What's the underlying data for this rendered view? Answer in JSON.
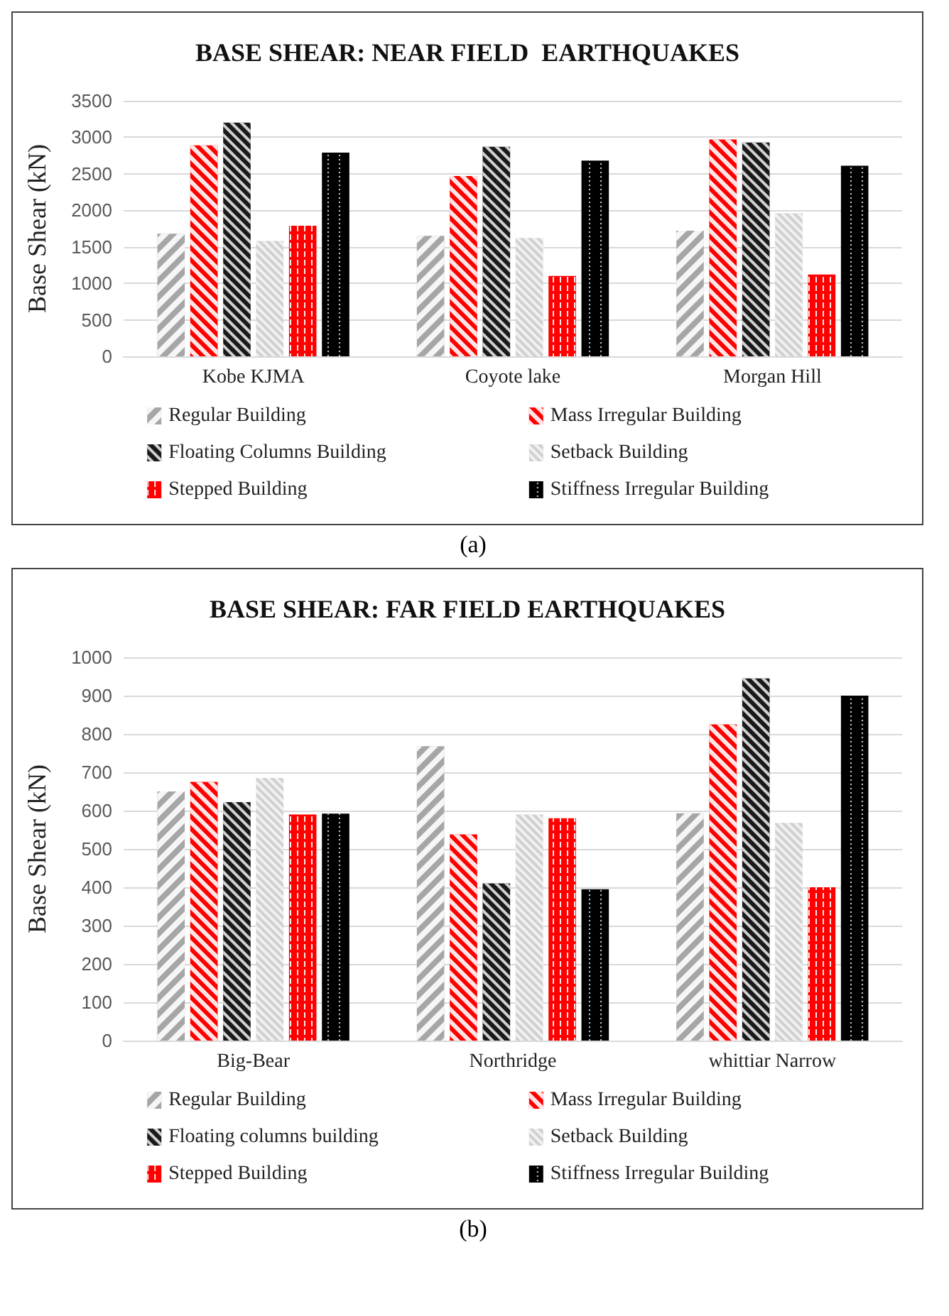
{
  "chart_data": [
    {
      "type": "bar",
      "title": "BASE SHEAR: NEAR FIELD  EARTHQUAKES",
      "ylabel": "Base Shear (kN)",
      "categories": [
        "Kobe KJMA",
        "Coyote lake",
        "Morgan Hill"
      ],
      "series": [
        {
          "name": "Regular Building",
          "color": "#a6a6a6",
          "values": [
            1680,
            1650,
            1720
          ]
        },
        {
          "name": "Mass Irregular Building",
          "color": "#ff0000",
          "values": [
            2890,
            2470,
            2970
          ]
        },
        {
          "name": "Floating Columns Building",
          "color": "#1a1a1a",
          "values": [
            3200,
            2870,
            2930
          ]
        },
        {
          "name": "Setback Building",
          "color": "#d0d0d0",
          "values": [
            1580,
            1620,
            1960
          ]
        },
        {
          "name": "Stepped Building",
          "color": "#ff0000",
          "values": [
            1790,
            1100,
            1120
          ]
        },
        {
          "name": "Stiffness Irregular Building",
          "color": "#000000",
          "values": [
            2790,
            2680,
            2610
          ]
        }
      ],
      "ylim": [
        0,
        3500
      ],
      "yticks": [
        0,
        500,
        1000,
        1500,
        2000,
        2500,
        3000,
        3500
      ],
      "grid": "y",
      "legend": "bottom",
      "annotations": [
        "(a)"
      ]
    },
    {
      "type": "bar",
      "title": "BASE SHEAR: FAR FIELD EARTHQUAKES",
      "ylabel": "Base Shear (kN)",
      "categories": [
        "Big-Bear",
        "Northridge",
        "whittiar Narrow"
      ],
      "series": [
        {
          "name": "Regular Building",
          "color": "#a6a6a6",
          "values": [
            650,
            768,
            593
          ]
        },
        {
          "name": "Mass Irregular Building",
          "color": "#ff0000",
          "values": [
            675,
            538,
            825
          ]
        },
        {
          "name": "Floating columns building",
          "color": "#1a1a1a",
          "values": [
            622,
            410,
            945
          ]
        },
        {
          "name": "Setback Building",
          "color": "#d0d0d0",
          "values": [
            685,
            590,
            568
          ]
        },
        {
          "name": "Stepped Building",
          "color": "#ff0000",
          "values": [
            590,
            580,
            400
          ]
        },
        {
          "name": "Stiffness Irregular Building",
          "color": "#000000",
          "values": [
            592,
            395,
            900
          ]
        }
      ],
      "ylim": [
        0,
        1000
      ],
      "yticks": [
        0,
        100,
        200,
        300,
        400,
        500,
        600,
        700,
        800,
        900,
        1000
      ],
      "grid": "y",
      "legend": "bottom",
      "annotations": [
        "(b)"
      ]
    }
  ]
}
